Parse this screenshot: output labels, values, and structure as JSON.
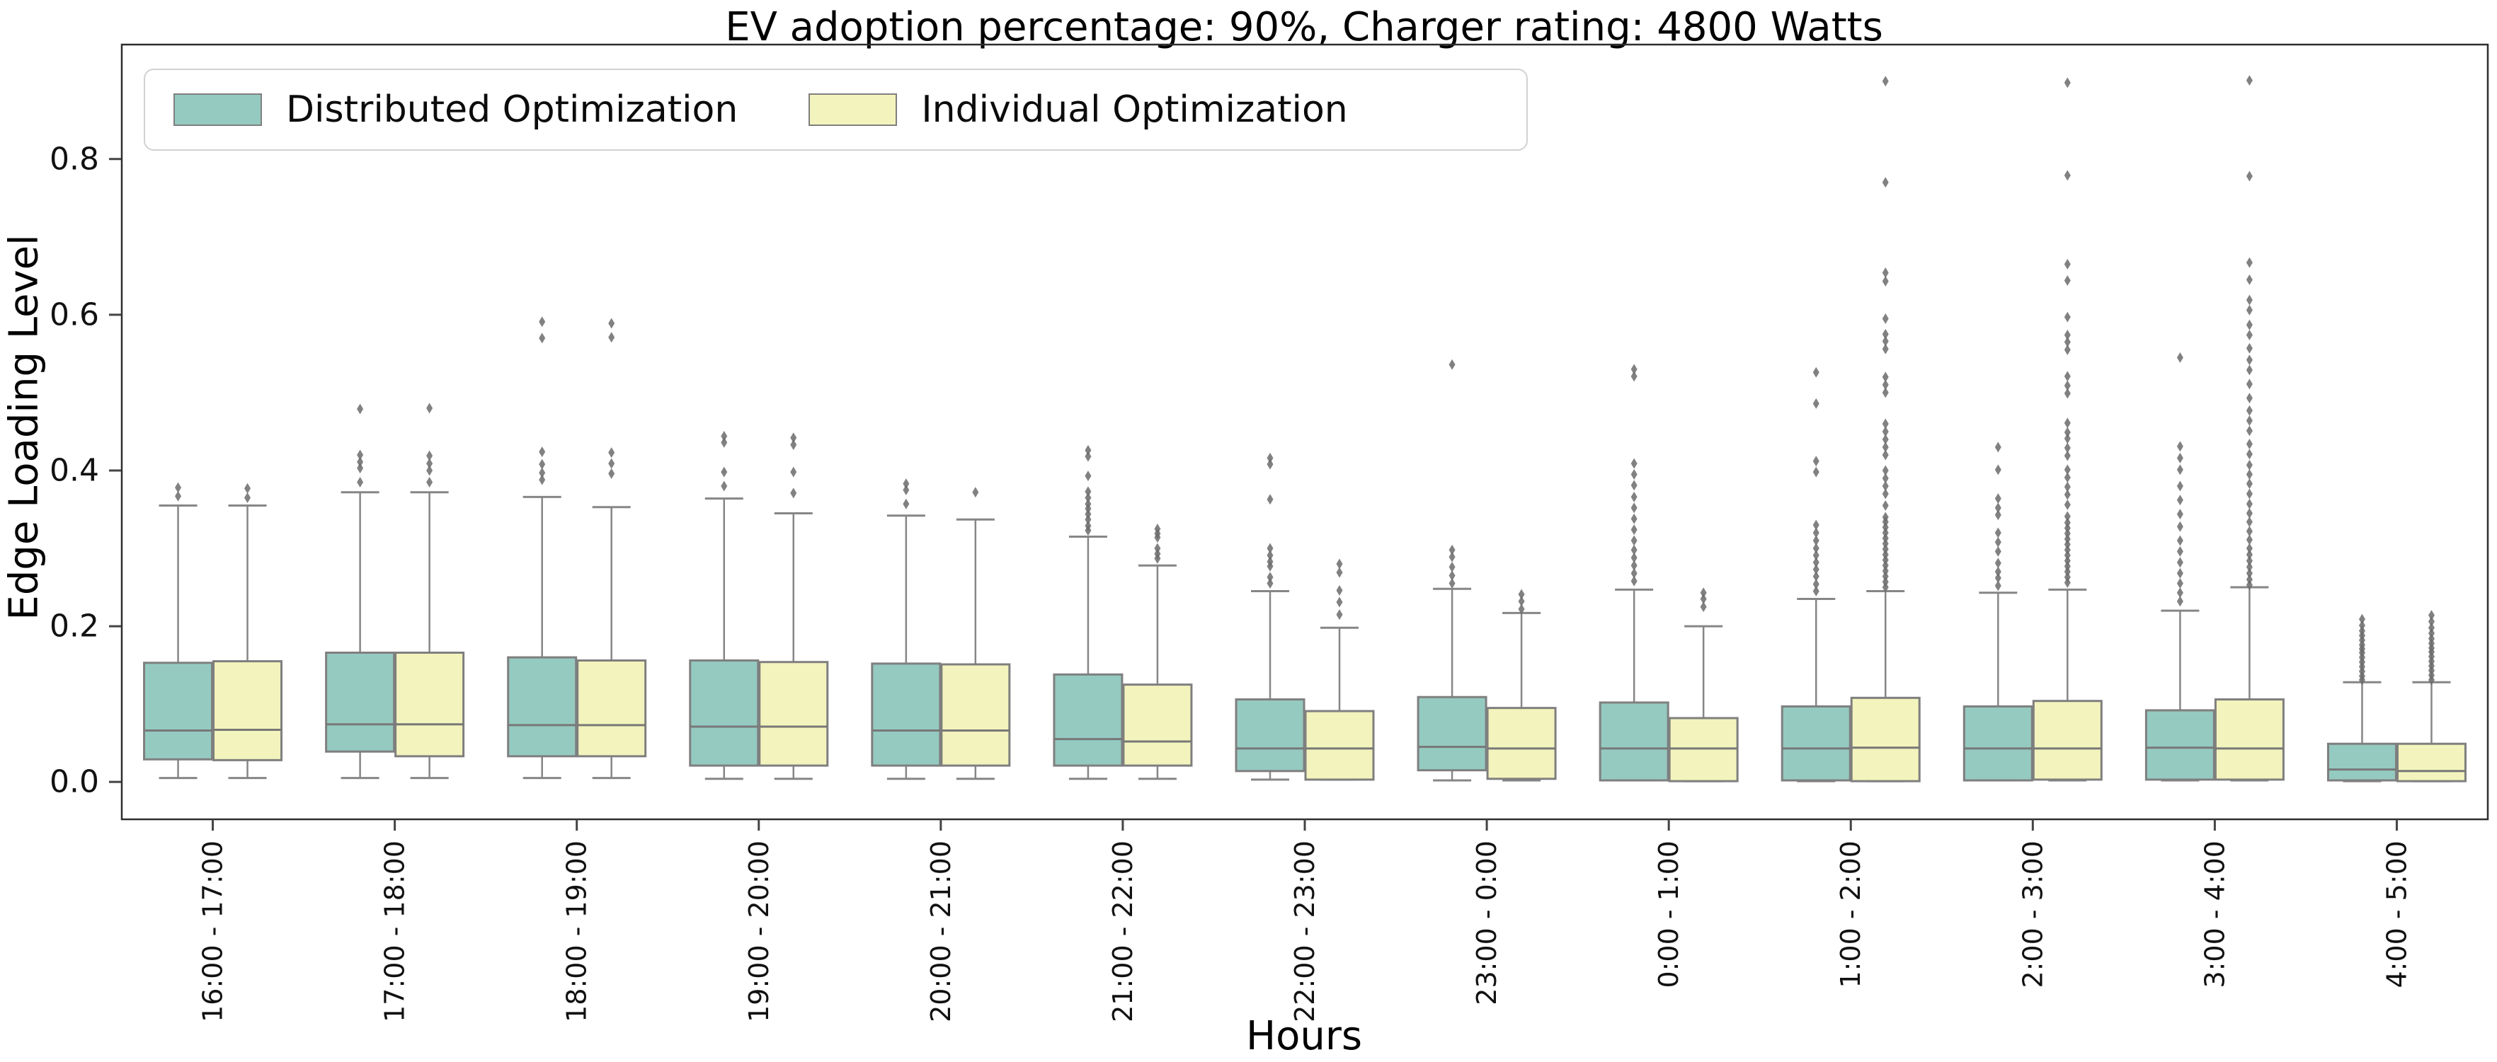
{
  "title": "EV adoption percentage: 90%, Charger rating: 4800 Watts",
  "legend": {
    "entries": [
      {
        "label": "Distributed Optimization",
        "color_key": "distributed"
      },
      {
        "label": "Individual Optimization",
        "color_key": "individual"
      }
    ]
  },
  "chart_data": {
    "type": "grouped_boxplot",
    "title": "EV adoption percentage: 90%, Charger rating: 4800 Watts",
    "xlabel": "Hours",
    "ylabel": "Edge Loading Level",
    "ylim": [
      -0.048,
      0.947
    ],
    "yticks": [
      0.0,
      0.2,
      0.4,
      0.6,
      0.8
    ],
    "ytick_labels": [
      "0.0",
      "0.2",
      "0.4",
      "0.6",
      "0.8"
    ],
    "grid": false,
    "legend_position": "upper left",
    "categories": [
      "16:00 - 17:00",
      "17:00 - 18:00",
      "18:00 - 19:00",
      "19:00 - 20:00",
      "20:00 - 21:00",
      "21:00 - 22:00",
      "22:00 - 23:00",
      "23:00 - 0:00",
      "0:00 - 1:00",
      "1:00 - 2:00",
      "2:00 - 3:00",
      "3:00 - 4:00",
      "4:00 - 5:00"
    ],
    "colors": {
      "distributed": "#95cac1",
      "individual": "#f3f3bd",
      "box_edge": "#7f7f7f",
      "whisker": "#868686",
      "median": "#787878",
      "flier": "#6b6b6b",
      "spine": "#2e2e2e",
      "tick": "#444444",
      "text": "#111111"
    },
    "series": [
      {
        "name": "Distributed Optimization",
        "color_key": "distributed",
        "boxes": [
          {
            "lo": 0.005,
            "q1": 0.029,
            "med": 0.066,
            "q3": 0.153,
            "hi": 0.355,
            "fliers": [
              0.378,
              0.367
            ]
          },
          {
            "lo": 0.005,
            "q1": 0.039,
            "med": 0.074,
            "q3": 0.166,
            "hi": 0.372,
            "fliers": [
              0.479,
              0.42,
              0.411,
              0.403,
              0.385
            ]
          },
          {
            "lo": 0.005,
            "q1": 0.033,
            "med": 0.073,
            "q3": 0.16,
            "hi": 0.366,
            "fliers": [
              0.591,
              0.57,
              0.424,
              0.408,
              0.397,
              0.388
            ]
          },
          {
            "lo": 0.004,
            "q1": 0.021,
            "med": 0.071,
            "q3": 0.156,
            "hi": 0.364,
            "fliers": [
              0.444,
              0.436,
              0.398,
              0.38
            ]
          },
          {
            "lo": 0.004,
            "q1": 0.021,
            "med": 0.066,
            "q3": 0.152,
            "hi": 0.342,
            "fliers": [
              0.383,
              0.375,
              0.357
            ]
          },
          {
            "lo": 0.004,
            "q1": 0.021,
            "med": 0.055,
            "q3": 0.138,
            "hi": 0.315,
            "fliers": [
              0.426,
              0.418,
              0.393,
              0.373,
              0.365,
              0.357,
              0.351,
              0.344,
              0.337,
              0.329,
              0.323
            ]
          },
          {
            "lo": 0.003,
            "q1": 0.014,
            "med": 0.043,
            "q3": 0.106,
            "hi": 0.245,
            "fliers": [
              0.416,
              0.408,
              0.363,
              0.3,
              0.291,
              0.283,
              0.277,
              0.263,
              0.255
            ]
          },
          {
            "lo": 0.002,
            "q1": 0.015,
            "med": 0.045,
            "q3": 0.109,
            "hi": 0.248,
            "fliers": [
              0.536,
              0.298,
              0.289,
              0.276,
              0.265,
              0.255
            ]
          },
          {
            "lo": 0.002,
            "q1": 0.002,
            "med": 0.043,
            "q3": 0.102,
            "hi": 0.247,
            "fliers": [
              0.53,
              0.521,
              0.409,
              0.395,
              0.381,
              0.366,
              0.352,
              0.338,
              0.324,
              0.31,
              0.298,
              0.288,
              0.278,
              0.268,
              0.258
            ]
          },
          {
            "lo": 0.001,
            "q1": 0.002,
            "med": 0.043,
            "q3": 0.097,
            "hi": 0.235,
            "fliers": [
              0.526,
              0.486,
              0.412,
              0.398,
              0.33,
              0.32,
              0.31,
              0.3,
              0.291,
              0.282,
              0.273,
              0.264,
              0.254,
              0.245
            ]
          },
          {
            "lo": 0.002,
            "q1": 0.002,
            "med": 0.043,
            "q3": 0.097,
            "hi": 0.243,
            "fliers": [
              0.43,
              0.401,
              0.364,
              0.352,
              0.343,
              0.32,
              0.308,
              0.296,
              0.281,
              0.27,
              0.262,
              0.252
            ]
          },
          {
            "lo": 0.002,
            "q1": 0.003,
            "med": 0.044,
            "q3": 0.092,
            "hi": 0.22,
            "fliers": [
              0.545,
              0.431,
              0.416,
              0.401,
              0.38,
              0.362,
              0.344,
              0.328,
              0.31,
              0.296,
              0.282,
              0.268,
              0.255,
              0.243,
              0.232
            ]
          },
          {
            "lo": 0.001,
            "q1": 0.002,
            "med": 0.016,
            "q3": 0.049,
            "hi": 0.128,
            "fliers": [
              0.209,
              0.201,
              0.194,
              0.188,
              0.182,
              0.176,
              0.171,
              0.166,
              0.16,
              0.154,
              0.148,
              0.142,
              0.136,
              0.131
            ]
          }
        ]
      },
      {
        "name": "Individual Optimization",
        "color_key": "individual",
        "boxes": [
          {
            "lo": 0.005,
            "q1": 0.028,
            "med": 0.067,
            "q3": 0.155,
            "hi": 0.355,
            "fliers": [
              0.377,
              0.365
            ]
          },
          {
            "lo": 0.005,
            "q1": 0.033,
            "med": 0.074,
            "q3": 0.166,
            "hi": 0.372,
            "fliers": [
              0.48,
              0.419,
              0.409,
              0.4,
              0.385
            ]
          },
          {
            "lo": 0.005,
            "q1": 0.033,
            "med": 0.073,
            "q3": 0.156,
            "hi": 0.353,
            "fliers": [
              0.589,
              0.571,
              0.423,
              0.409,
              0.396
            ]
          },
          {
            "lo": 0.004,
            "q1": 0.021,
            "med": 0.071,
            "q3": 0.154,
            "hi": 0.345,
            "fliers": [
              0.442,
              0.433,
              0.398,
              0.371
            ]
          },
          {
            "lo": 0.004,
            "q1": 0.021,
            "med": 0.066,
            "q3": 0.151,
            "hi": 0.337,
            "fliers": [
              0.372
            ]
          },
          {
            "lo": 0.004,
            "q1": 0.021,
            "med": 0.052,
            "q3": 0.125,
            "hi": 0.278,
            "fliers": [
              0.325,
              0.319,
              0.314,
              0.3,
              0.293,
              0.287
            ]
          },
          {
            "lo": 0.003,
            "q1": 0.003,
            "med": 0.043,
            "q3": 0.091,
            "hi": 0.198,
            "fliers": [
              0.28,
              0.269,
              0.246,
              0.231,
              0.215
            ]
          },
          {
            "lo": 0.002,
            "q1": 0.004,
            "med": 0.043,
            "q3": 0.095,
            "hi": 0.217,
            "fliers": [
              0.241,
              0.232,
              0.222
            ]
          },
          {
            "lo": 0.001,
            "q1": 0.001,
            "med": 0.043,
            "q3": 0.082,
            "hi": 0.2,
            "fliers": [
              0.243,
              0.235,
              0.225
            ]
          },
          {
            "lo": 0.001,
            "q1": 0.001,
            "med": 0.044,
            "q3": 0.108,
            "hi": 0.245,
            "fliers": [
              0.9,
              0.77,
              0.654,
              0.643,
              0.595,
              0.575,
              0.566,
              0.556,
              0.52,
              0.51,
              0.5,
              0.46,
              0.45,
              0.44,
              0.43,
              0.42,
              0.4,
              0.39,
              0.38,
              0.37,
              0.355,
              0.34,
              0.334,
              0.327,
              0.32,
              0.313,
              0.306,
              0.299,
              0.292,
              0.285,
              0.278,
              0.271,
              0.264,
              0.257,
              0.25
            ]
          },
          {
            "lo": 0.002,
            "q1": 0.003,
            "med": 0.043,
            "q3": 0.104,
            "hi": 0.247,
            "fliers": [
              0.898,
              0.779,
              0.665,
              0.644,
              0.597,
              0.574,
              0.565,
              0.555,
              0.521,
              0.509,
              0.499,
              0.461,
              0.449,
              0.441,
              0.429,
              0.419,
              0.401,
              0.391,
              0.379,
              0.369,
              0.356,
              0.341,
              0.333,
              0.326,
              0.319,
              0.312,
              0.305,
              0.298,
              0.291,
              0.284,
              0.277,
              0.27,
              0.263,
              0.256
            ]
          },
          {
            "lo": 0.002,
            "q1": 0.003,
            "med": 0.043,
            "q3": 0.106,
            "hi": 0.25,
            "fliers": [
              0.901,
              0.778,
              0.667,
              0.645,
              0.619,
              0.606,
              0.587,
              0.574,
              0.557,
              0.542,
              0.529,
              0.511,
              0.493,
              0.477,
              0.464,
              0.451,
              0.434,
              0.421,
              0.407,
              0.395,
              0.383,
              0.37,
              0.357,
              0.345,
              0.334,
              0.322,
              0.311,
              0.3,
              0.292,
              0.284,
              0.276,
              0.268,
              0.26,
              0.253
            ]
          },
          {
            "lo": 0.001,
            "q1": 0.001,
            "med": 0.014,
            "q3": 0.049,
            "hi": 0.128,
            "fliers": [
              0.214,
              0.206,
              0.198,
              0.191,
              0.184,
              0.178,
              0.172,
              0.167,
              0.161,
              0.155,
              0.149,
              0.143,
              0.137,
              0.131
            ]
          }
        ]
      }
    ]
  }
}
